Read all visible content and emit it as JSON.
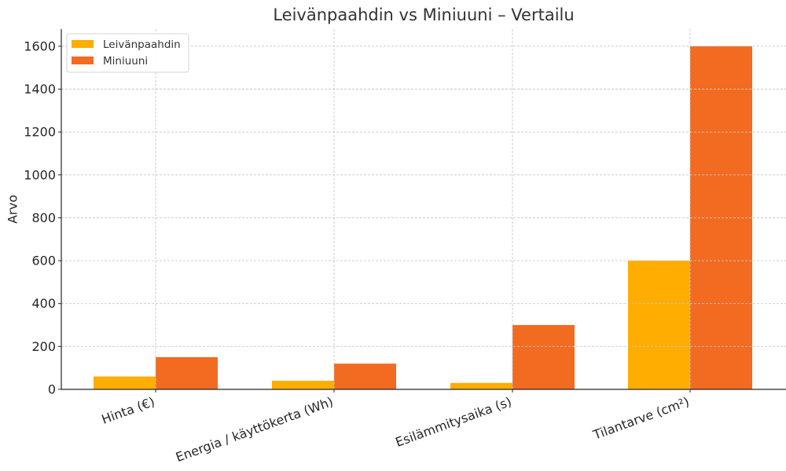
{
  "chart_data": {
    "type": "bar",
    "title": "Leivänpaahdin vs Miniuuni – Vertailu",
    "xlabel": "",
    "ylabel": "Arvo",
    "categories": [
      "Hinta (€)",
      "Energia / käyttökerta (Wh)",
      "Esilämmitysaika (s)",
      "Tilantarve (cm²)"
    ],
    "series": [
      {
        "name": "Leivänpaahdin",
        "color": "#FFAD00",
        "values": [
          60,
          40,
          30,
          600
        ]
      },
      {
        "name": "Miniuuni",
        "color": "#F26B21",
        "values": [
          150,
          120,
          300,
          1600
        ]
      }
    ],
    "ylim": [
      0,
      1680
    ],
    "yticks": [
      0,
      200,
      400,
      600,
      800,
      1000,
      1200,
      1400,
      1600
    ],
    "grid": true,
    "legend_position": "upper left"
  }
}
